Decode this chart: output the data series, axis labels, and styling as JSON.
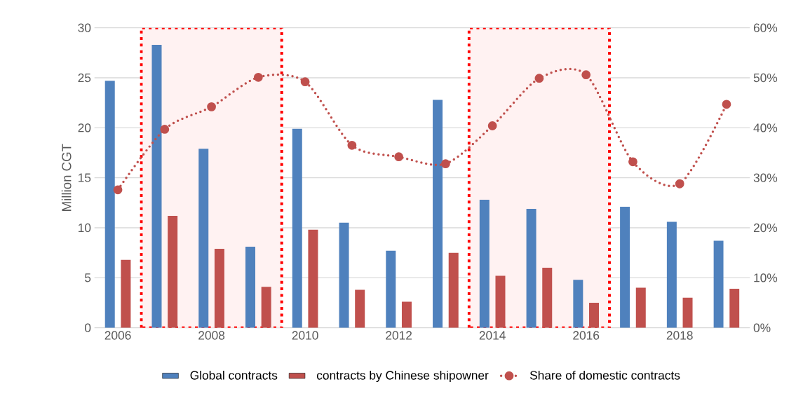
{
  "chart_data": {
    "type": "bar",
    "ylabel": "Million CGT",
    "x": [
      2006,
      2007,
      2008,
      2009,
      2010,
      2011,
      2012,
      2013,
      2014,
      2015,
      2016,
      2017,
      2018,
      2019
    ],
    "xlim": [
      2005.5,
      2019.5
    ],
    "xticks": [
      2006,
      2008,
      2010,
      2012,
      2014,
      2016,
      2018
    ],
    "ylim": [
      0,
      30
    ],
    "yticks": [
      0,
      5,
      10,
      15,
      20,
      25,
      30
    ],
    "y2lim": [
      0,
      60
    ],
    "y2ticks": [
      {
        "value": 0,
        "label": "0%"
      },
      {
        "value": 10,
        "label": "10%"
      },
      {
        "value": 20,
        "label": "20%"
      },
      {
        "value": 30,
        "label": "30%"
      },
      {
        "value": 40,
        "label": "40%"
      },
      {
        "value": 50,
        "label": "50%"
      },
      {
        "value": 60,
        "label": "60%"
      }
    ],
    "series": [
      {
        "name": "Global contracts",
        "color": "#4f81bd",
        "values": [
          24.7,
          28.3,
          17.9,
          8.1,
          19.9,
          10.5,
          7.7,
          22.8,
          12.8,
          11.9,
          4.8,
          12.1,
          10.6,
          8.7
        ]
      },
      {
        "name": "contracts by Chinese shipowner",
        "color": "#c0504d",
        "values": [
          6.8,
          11.2,
          7.9,
          4.1,
          9.8,
          3.8,
          2.6,
          7.5,
          5.2,
          6.0,
          2.5,
          4.0,
          3.0,
          3.9
        ]
      },
      {
        "name": "Share of domestic contracts",
        "color": "#c0504d",
        "type": "line",
        "axis": "y2",
        "marker": "circle",
        "line_style": "dotted",
        "values": [
          27.6,
          39.7,
          44.2,
          50.1,
          49.2,
          36.5,
          34.2,
          32.8,
          40.4,
          49.9,
          50.6,
          33.2,
          28.8,
          44.7
        ]
      }
    ],
    "bands": [
      {
        "axis": "x",
        "from": 2006.5,
        "to": 2009.5
      },
      {
        "axis": "x",
        "from": 2013.5,
        "to": 2016.5
      }
    ],
    "grid": "y",
    "legend": "bottom"
  }
}
